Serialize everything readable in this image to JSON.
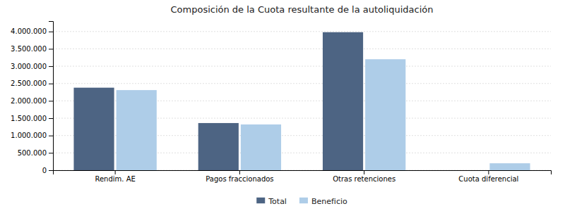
{
  "chart_data": {
    "type": "bar",
    "title": "Composición de la Cuota resultante de la autoliquidación",
    "categories": [
      "Rendim. AE",
      "Pagos fraccionados",
      "Otras retenciones",
      "Cuota diferencial"
    ],
    "series": [
      {
        "name": "Total",
        "color": "#4d6483",
        "values": [
          2380000,
          1360000,
          3980000,
          0
        ]
      },
      {
        "name": "Beneficio",
        "color": "#aecde8",
        "values": [
          2310000,
          1320000,
          3200000,
          200000
        ]
      }
    ],
    "ylim": [
      0,
      4300000
    ],
    "yticks": [
      0,
      {
        "value": 500000,
        "label": "500.000"
      },
      {
        "value": 1000000,
        "label": "1.000.000"
      },
      {
        "value": 1500000,
        "label": "1.500.000"
      },
      {
        "value": 2000000,
        "label": "2.000.000"
      },
      {
        "value": 2500000,
        "label": "2.500.000"
      },
      {
        "value": 3000000,
        "label": "3.000.000"
      },
      {
        "value": 3500000,
        "label": "3.500.000"
      },
      {
        "value": 4000000,
        "label": "4.000.000"
      }
    ],
    "grid": true,
    "legend": "bottom"
  }
}
